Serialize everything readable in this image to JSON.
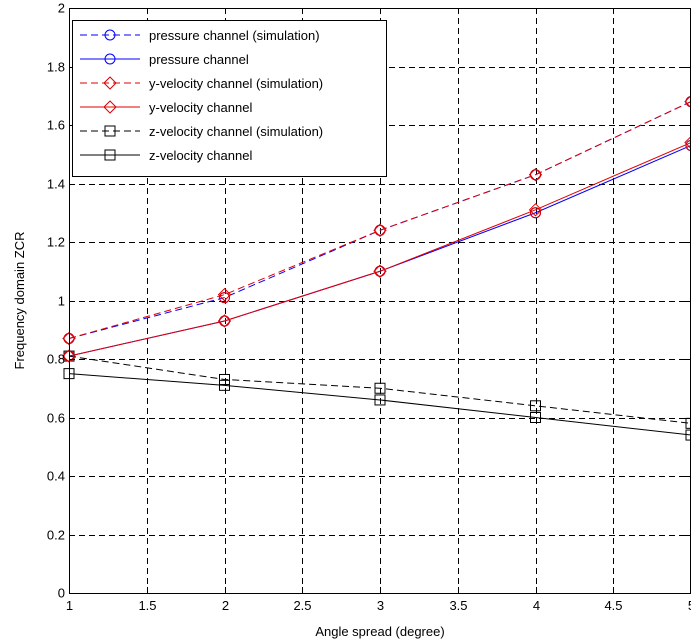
{
  "chart_data": {
    "type": "line",
    "title": "",
    "xlabel": "Angle spread (degree)",
    "ylabel": "Frequency domain ZCR",
    "xlim": [
      1,
      5
    ],
    "ylim": [
      0,
      2
    ],
    "xticks": [
      1,
      1.5,
      2,
      2.5,
      3,
      3.5,
      4,
      4.5,
      5
    ],
    "xtick_labels": [
      "1",
      "1.5",
      "2",
      "2.5",
      "3",
      "3.5",
      "4",
      "4.5",
      "5"
    ],
    "yticks": [
      0,
      0.2,
      0.4,
      0.6,
      0.8,
      1,
      1.2,
      1.4,
      1.6,
      1.8,
      2
    ],
    "ytick_labels": [
      "0",
      "0.2",
      "0.4",
      "0.6",
      "0.8",
      "1",
      "1.2",
      "1.4",
      "1.6",
      "1.8",
      "2"
    ],
    "grid": true,
    "grid_style": "dashed",
    "legend_position": "top-left",
    "x": [
      1,
      2,
      3,
      4,
      5
    ],
    "series": [
      {
        "name": "pressure channel (simulation)",
        "values": [
          0.87,
          1.01,
          1.24,
          1.43,
          1.68
        ],
        "color": "#0000ff",
        "dash": "dashed",
        "marker": "circle"
      },
      {
        "name": "pressure channel",
        "values": [
          0.81,
          0.93,
          1.1,
          1.3,
          1.53
        ],
        "color": "#0000ff",
        "dash": "solid",
        "marker": "circle"
      },
      {
        "name": "y-velocity channel (simulation)",
        "values": [
          0.87,
          1.02,
          1.24,
          1.43,
          1.68
        ],
        "color": "#e00000",
        "dash": "dashed",
        "marker": "diamond"
      },
      {
        "name": "y-velocity channel",
        "values": [
          0.81,
          0.93,
          1.1,
          1.31,
          1.54
        ],
        "color": "#e00000",
        "dash": "solid",
        "marker": "diamond"
      },
      {
        "name": "z-velocity channel (simulation)",
        "values": [
          0.81,
          0.73,
          0.7,
          0.64,
          0.58
        ],
        "color": "#000000",
        "dash": "dashed",
        "marker": "square"
      },
      {
        "name": "z-velocity channel",
        "values": [
          0.75,
          0.71,
          0.66,
          0.6,
          0.54
        ],
        "color": "#000000",
        "dash": "solid",
        "marker": "square"
      }
    ],
    "markers_on_points": [
      {
        "series": 0,
        "marker": "circle",
        "color": "#e00000"
      },
      {
        "series": 1,
        "marker": "circle",
        "color": "#e00000"
      }
    ]
  }
}
